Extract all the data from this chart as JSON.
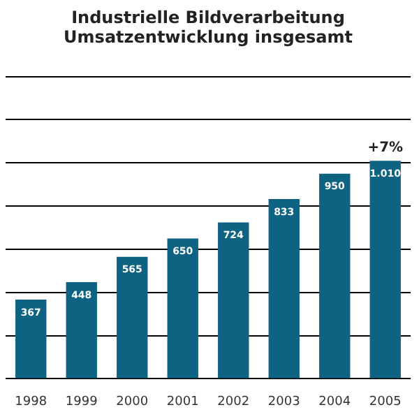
{
  "chart_data": {
    "type": "bar",
    "title": [
      "Industrielle Bildverarbeitung",
      "Umsatzentwicklung insgesamt"
    ],
    "categories": [
      "1998",
      "1999",
      "2000",
      "2001",
      "2002",
      "2003",
      "2004",
      "2005"
    ],
    "values": [
      367,
      448,
      565,
      650,
      724,
      833,
      950,
      1010
    ],
    "value_labels": [
      "367",
      "448",
      "565",
      "650",
      "724",
      "833",
      "950",
      "1.010"
    ],
    "color": "#0f6382",
    "ylim": [
      0,
      1400
    ],
    "yticks": [
      {
        "value": 0,
        "label": null
      },
      {
        "value": 200,
        "label": null
      },
      {
        "value": 400,
        "label": null
      },
      {
        "value": 600,
        "label": null
      },
      {
        "value": 800,
        "label": null
      },
      {
        "value": 1000,
        "label": null
      },
      {
        "value": 1200,
        "label": null
      },
      {
        "value": 1400,
        "label": null
      }
    ],
    "tick_labels": "x",
    "grid": "y",
    "annotations": [
      {
        "text": "+7%",
        "x": "2005",
        "y": 1010
      }
    ]
  }
}
